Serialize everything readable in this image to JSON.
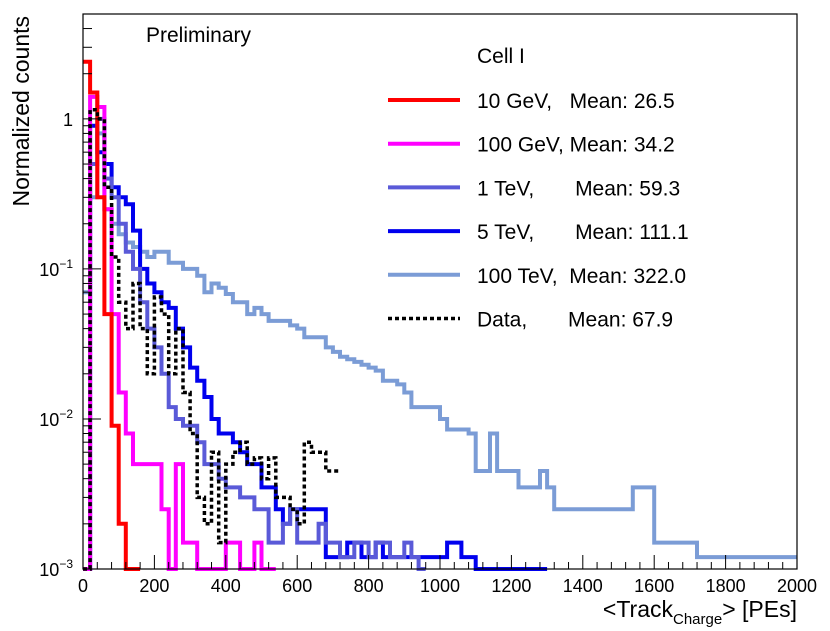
{
  "chart_data": {
    "type": "histogram",
    "annotation": "Preliminary",
    "legend_title": "Cell I",
    "xlabel_prefix": "<Track",
    "xlabel_subscript": "Charge",
    "xlabel_suffix": "> [PEs]",
    "ylabel": "Normalized counts",
    "xlim": [
      0,
      2000
    ],
    "ylim": [
      0.001,
      5
    ],
    "yscale": "log",
    "x_ticks": [
      0,
      200,
      400,
      600,
      800,
      1000,
      1200,
      1400,
      1600,
      1800,
      2000
    ],
    "x_tick_labels": [
      "0",
      "200",
      "400",
      "600",
      "800",
      "1000",
      "1200",
      "1400",
      "1600",
      "1800",
      "2000"
    ],
    "y_ticks": [
      {
        "value": 1,
        "base": "1",
        "exp": ""
      },
      {
        "value": 0.1,
        "base": "10",
        "exp": "−1"
      },
      {
        "value": 0.01,
        "base": "10",
        "exp": "−2"
      },
      {
        "value": 0.001,
        "base": "10",
        "exp": "−3"
      }
    ],
    "legend_position": "top-right",
    "series": [
      {
        "label": "10 GeV,   Mean: 26.5",
        "color": "#ff0000",
        "dash": false,
        "x": [
          0,
          20,
          40,
          60,
          80,
          100,
          120,
          140
        ],
        "y": [
          2.4,
          1.5,
          0.3,
          0.05,
          0.009,
          0.002,
          0.001,
          0.001
        ]
      },
      {
        "label": "100 GeV, Mean: 34.2",
        "color": "#ff00ff",
        "dash": false,
        "x": [
          0,
          20,
          40,
          60,
          80,
          100,
          120,
          140,
          160,
          180,
          200,
          220,
          240,
          260,
          280,
          300,
          320,
          340,
          360,
          380,
          400,
          420,
          440,
          460,
          480,
          500,
          520
        ],
        "y": [
          0.001,
          1.4,
          1.2,
          0.25,
          0.05,
          0.015,
          0.008,
          0.005,
          0.005,
          0.005,
          0.005,
          0.0025,
          0.001,
          0.005,
          0.0015,
          0.0015,
          0.001,
          0.001,
          0.001,
          0.001,
          0.0015,
          0.0015,
          0.001,
          0.001,
          0.0015,
          0.001,
          0.001
        ]
      },
      {
        "label": "1 TeV,       Mean: 59.3",
        "color": "#5a5ad8",
        "dash": false,
        "x": [
          0,
          20,
          40,
          60,
          80,
          100,
          120,
          140,
          160,
          180,
          200,
          220,
          240,
          260,
          280,
          300,
          320,
          340,
          360,
          380,
          400,
          420,
          440,
          460,
          480,
          500,
          520,
          540,
          560,
          580,
          600,
          620,
          640,
          660,
          680,
          700,
          720,
          740,
          760,
          780,
          800,
          820,
          840,
          860,
          880,
          900,
          920,
          940
        ],
        "y": [
          0.001,
          0.5,
          1.0,
          0.4,
          0.3,
          0.2,
          0.13,
          0.1,
          0.06,
          0.04,
          0.03,
          0.02,
          0.012,
          0.01,
          0.009,
          0.009,
          0.007,
          0.005,
          0.005,
          0.004,
          0.0035,
          0.0035,
          0.003,
          0.003,
          0.0025,
          0.0025,
          0.0015,
          0.0015,
          0.002,
          0.0025,
          0.0015,
          0.0015,
          0.0015,
          0.002,
          0.0015,
          0.0015,
          0.0012,
          0.0012,
          0.0015,
          0.0015,
          0.0012,
          0.0015,
          0.0015,
          0.0012,
          0.0012,
          0.0015,
          0.0012,
          0.001
        ]
      },
      {
        "label": "5 TeV,       Mean: 111.1",
        "color": "#0000ee",
        "dash": false,
        "x": [
          0,
          20,
          40,
          60,
          80,
          100,
          120,
          140,
          160,
          180,
          200,
          220,
          240,
          260,
          280,
          300,
          320,
          340,
          360,
          380,
          400,
          420,
          440,
          460,
          480,
          500,
          520,
          540,
          560,
          580,
          600,
          620,
          640,
          660,
          680,
          700,
          720,
          740,
          760,
          780,
          800,
          820,
          840,
          860,
          880,
          900,
          920,
          940,
          960,
          980,
          1000,
          1020,
          1040,
          1060,
          1080,
          1100,
          1120,
          1140,
          1160,
          1180,
          1200,
          1220,
          1240,
          1260,
          1280
        ],
        "y": [
          0.001,
          0.9,
          0.6,
          0.5,
          0.35,
          0.3,
          0.27,
          0.18,
          0.1,
          0.08,
          0.07,
          0.06,
          0.055,
          0.04,
          0.03,
          0.022,
          0.018,
          0.014,
          0.01,
          0.008,
          0.008,
          0.007,
          0.006,
          0.005,
          0.005,
          0.0035,
          0.0035,
          0.0025,
          0.002,
          0.0025,
          0.0025,
          0.0025,
          0.0025,
          0.0025,
          0.0012,
          0.0012,
          0.0012,
          0.0015,
          0.0015,
          0.0012,
          0.0012,
          0.0015,
          0.0012,
          0.0012,
          0.0012,
          0.0012,
          0.0012,
          0.0012,
          0.0012,
          0.0012,
          0.0012,
          0.0015,
          0.0015,
          0.0012,
          0.0012,
          0.001,
          0.001,
          0.001,
          0.001,
          0.001,
          0.001,
          0.001,
          0.001,
          0.001,
          0.001
        ]
      },
      {
        "label": "100 TeV,  Mean: 322.0",
        "color": "#7b9cd6",
        "dash": false,
        "x": [
          0,
          20,
          40,
          60,
          80,
          100,
          120,
          140,
          160,
          180,
          200,
          220,
          240,
          260,
          280,
          300,
          320,
          340,
          360,
          380,
          400,
          420,
          440,
          460,
          480,
          500,
          520,
          540,
          560,
          580,
          600,
          620,
          640,
          660,
          680,
          700,
          720,
          740,
          760,
          780,
          800,
          820,
          840,
          860,
          880,
          900,
          920,
          940,
          960,
          980,
          1000,
          1020,
          1040,
          1060,
          1080,
          1100,
          1120,
          1140,
          1160,
          1180,
          1200,
          1220,
          1240,
          1260,
          1280,
          1300,
          1320,
          1340,
          1360,
          1380,
          1400,
          1420,
          1440,
          1460,
          1480,
          1500,
          1520,
          1540,
          1560,
          1580,
          1600,
          1620,
          1640,
          1660,
          1680,
          1700,
          1720,
          1740,
          1760,
          1780,
          1800,
          1820,
          1840,
          1860,
          1880,
          1900,
          1920,
          1940,
          1960,
          1980
        ],
        "y": [
          0.07,
          0.3,
          0.8,
          0.25,
          0.2,
          0.17,
          0.15,
          0.14,
          0.13,
          0.12,
          0.13,
          0.13,
          0.11,
          0.11,
          0.1,
          0.1,
          0.09,
          0.07,
          0.08,
          0.075,
          0.068,
          0.06,
          0.06,
          0.05,
          0.055,
          0.05,
          0.045,
          0.045,
          0.045,
          0.042,
          0.04,
          0.035,
          0.035,
          0.035,
          0.03,
          0.028,
          0.026,
          0.025,
          0.024,
          0.023,
          0.022,
          0.021,
          0.018,
          0.018,
          0.017,
          0.015,
          0.012,
          0.012,
          0.012,
          0.012,
          0.01,
          0.0085,
          0.0085,
          0.0085,
          0.008,
          0.0045,
          0.0045,
          0.008,
          0.0045,
          0.0045,
          0.0045,
          0.0035,
          0.0035,
          0.0035,
          0.0045,
          0.0035,
          0.0025,
          0.0025,
          0.0025,
          0.0025,
          0.0025,
          0.0025,
          0.0025,
          0.0025,
          0.0025,
          0.0025,
          0.0025,
          0.0035,
          0.0035,
          0.0035,
          0.0015,
          0.0015,
          0.0015,
          0.0015,
          0.0015,
          0.0015,
          0.0012,
          0.0012,
          0.0012,
          0.0012,
          0.0012,
          0.0012,
          0.0012,
          0.0012,
          0.0012,
          0.0012,
          0.0012,
          0.0012,
          0.0012,
          0.0012
        ]
      },
      {
        "label": "Data,       Mean: 67.9",
        "color": "#000000",
        "dash": true,
        "x": [
          0,
          20,
          40,
          60,
          80,
          100,
          120,
          140,
          160,
          180,
          200,
          220,
          240,
          260,
          280,
          300,
          320,
          340,
          360,
          380,
          400,
          420,
          440,
          460,
          480,
          500,
          520,
          540,
          560,
          580,
          600,
          620,
          640,
          660,
          680,
          700
        ],
        "y": [
          0.001,
          1.15,
          1.0,
          0.35,
          0.12,
          0.06,
          0.04,
          0.08,
          0.04,
          0.02,
          0.065,
          0.05,
          0.02,
          0.04,
          0.015,
          0.008,
          0.003,
          0.002,
          0.006,
          0.0015,
          0.005,
          0.006,
          0.007,
          0.005,
          0.0055,
          0.004,
          0.0055,
          0.003,
          0.003,
          0.0025,
          0.002,
          0.007,
          0.006,
          0.006,
          0.0045,
          0.0045
        ]
      }
    ]
  }
}
